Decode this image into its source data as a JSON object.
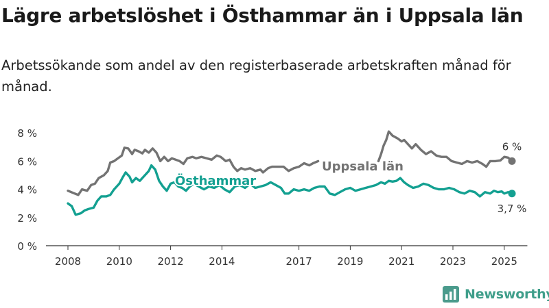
{
  "header": {
    "title": "Lägre arbetslöshet i Östhammar än i Uppsala län",
    "subtitle": "Arbetssökande som andel av den registerbaserade arbetskraften månad för månad."
  },
  "brand": {
    "name": "Newsworthy",
    "icon": "newsworthy-logo-icon"
  },
  "chart_data": {
    "type": "line",
    "title": "Lägre arbetslöshet i Östhammar än i Uppsala län",
    "subtitle": "Arbetssökande som andel av den registerbaserade arbetskraften månad för månad.",
    "xlabel": "",
    "ylabel": "",
    "xlim": [
      2007.5,
      2025.9
    ],
    "ylim": [
      0,
      8
    ],
    "x_ticks": [
      {
        "value": 2008,
        "label": "2008"
      },
      {
        "value": 2010,
        "label": "2010"
      },
      {
        "value": 2012,
        "label": "2012"
      },
      {
        "value": 2014,
        "label": "2014"
      },
      {
        "value": 2017,
        "label": "2017"
      },
      {
        "value": 2019,
        "label": "2019"
      },
      {
        "value": 2021,
        "label": "2021"
      },
      {
        "value": 2023,
        "label": "2023"
      },
      {
        "value": 2025,
        "label": "2025"
      }
    ],
    "y_ticks": [
      {
        "value": 0,
        "label": "0 %"
      },
      {
        "value": 2,
        "label": "2 %"
      },
      {
        "value": 4,
        "label": "4 %"
      },
      {
        "value": 6,
        "label": "6 %"
      },
      {
        "value": 8,
        "label": "8 %"
      }
    ],
    "grid": false,
    "legend": "inline labels",
    "series": [
      {
        "name": "Uppsala län",
        "color": "#737373",
        "end_label": "6 %",
        "segments": [
          [
            [
              2008.0,
              3.9
            ],
            [
              2008.2,
              3.75
            ],
            [
              2008.4,
              3.6
            ],
            [
              2008.55,
              4.0
            ],
            [
              2008.75,
              3.9
            ],
            [
              2008.9,
              4.3
            ],
            [
              2009.05,
              4.4
            ],
            [
              2009.2,
              4.8
            ],
            [
              2009.4,
              5.0
            ],
            [
              2009.55,
              5.3
            ],
            [
              2009.65,
              5.9
            ],
            [
              2009.8,
              6.0
            ],
            [
              2009.95,
              6.2
            ],
            [
              2010.1,
              6.4
            ],
            [
              2010.2,
              6.95
            ],
            [
              2010.35,
              6.9
            ],
            [
              2010.5,
              6.5
            ],
            [
              2010.6,
              6.8
            ],
            [
              2010.75,
              6.7
            ],
            [
              2010.9,
              6.55
            ],
            [
              2011.0,
              6.8
            ],
            [
              2011.15,
              6.6
            ],
            [
              2011.3,
              6.9
            ],
            [
              2011.45,
              6.6
            ],
            [
              2011.6,
              6.0
            ],
            [
              2011.75,
              6.3
            ],
            [
              2011.9,
              6.0
            ],
            [
              2012.05,
              6.2
            ],
            [
              2012.2,
              6.1
            ],
            [
              2012.35,
              6.0
            ],
            [
              2012.5,
              5.8
            ],
            [
              2012.65,
              6.2
            ],
            [
              2012.85,
              6.3
            ],
            [
              2013.0,
              6.2
            ],
            [
              2013.2,
              6.3
            ],
            [
              2013.4,
              6.2
            ],
            [
              2013.6,
              6.1
            ],
            [
              2013.8,
              6.4
            ],
            [
              2013.95,
              6.3
            ],
            [
              2014.15,
              6.0
            ],
            [
              2014.3,
              6.1
            ],
            [
              2014.45,
              5.6
            ],
            [
              2014.6,
              5.3
            ],
            [
              2014.75,
              5.5
            ],
            [
              2014.9,
              5.4
            ],
            [
              2015.1,
              5.5
            ],
            [
              2015.3,
              5.3
            ],
            [
              2015.5,
              5.4
            ],
            [
              2015.6,
              5.2
            ],
            [
              2015.8,
              5.5
            ],
            [
              2015.95,
              5.6
            ],
            [
              2016.2,
              5.6
            ],
            [
              2016.4,
              5.6
            ],
            [
              2016.6,
              5.3
            ],
            [
              2016.8,
              5.5
            ],
            [
              2017.0,
              5.6
            ],
            [
              2017.2,
              5.85
            ],
            [
              2017.4,
              5.7
            ],
            [
              2017.55,
              5.85
            ],
            [
              2017.75,
              6.0
            ]
          ],
          [
            [
              2020.1,
              6.0
            ],
            [
              2020.2,
              6.5
            ],
            [
              2020.3,
              7.1
            ],
            [
              2020.4,
              7.5
            ],
            [
              2020.5,
              8.1
            ],
            [
              2020.65,
              7.8
            ],
            [
              2020.85,
              7.6
            ],
            [
              2021.0,
              7.4
            ],
            [
              2021.1,
              7.5
            ],
            [
              2021.25,
              7.2
            ],
            [
              2021.4,
              6.9
            ],
            [
              2021.55,
              7.2
            ],
            [
              2021.75,
              6.8
            ],
            [
              2021.95,
              6.5
            ],
            [
              2022.15,
              6.7
            ],
            [
              2022.35,
              6.4
            ],
            [
              2022.55,
              6.3
            ],
            [
              2022.75,
              6.3
            ],
            [
              2022.95,
              6.0
            ],
            [
              2023.15,
              5.9
            ],
            [
              2023.35,
              5.8
            ],
            [
              2023.55,
              6.0
            ],
            [
              2023.75,
              5.9
            ],
            [
              2023.95,
              6.0
            ],
            [
              2024.15,
              5.8
            ],
            [
              2024.3,
              5.6
            ],
            [
              2024.45,
              6.0
            ],
            [
              2024.65,
              6.0
            ],
            [
              2024.85,
              6.05
            ],
            [
              2025.0,
              6.3
            ],
            [
              2025.15,
              6.25
            ],
            [
              2025.3,
              6.0
            ]
          ]
        ]
      },
      {
        "name": "Östhammar",
        "color": "#13a091",
        "end_label": "3,7 %",
        "segments": [
          [
            [
              2008.0,
              3.0
            ],
            [
              2008.15,
              2.8
            ],
            [
              2008.3,
              2.2
            ],
            [
              2008.5,
              2.3
            ],
            [
              2008.65,
              2.5
            ],
            [
              2008.8,
              2.6
            ],
            [
              2009.0,
              2.7
            ],
            [
              2009.15,
              3.2
            ],
            [
              2009.3,
              3.5
            ],
            [
              2009.5,
              3.5
            ],
            [
              2009.65,
              3.6
            ],
            [
              2009.8,
              4.0
            ],
            [
              2010.0,
              4.4
            ],
            [
              2010.15,
              4.9
            ],
            [
              2010.25,
              5.2
            ],
            [
              2010.4,
              4.9
            ],
            [
              2010.5,
              4.5
            ],
            [
              2010.65,
              4.8
            ],
            [
              2010.8,
              4.6
            ],
            [
              2011.0,
              5.0
            ],
            [
              2011.15,
              5.3
            ],
            [
              2011.25,
              5.7
            ],
            [
              2011.4,
              5.4
            ],
            [
              2011.55,
              4.6
            ],
            [
              2011.7,
              4.2
            ],
            [
              2011.85,
              3.9
            ],
            [
              2012.0,
              4.4
            ],
            [
              2012.15,
              4.5
            ],
            [
              2012.3,
              4.2
            ],
            [
              2012.45,
              4.1
            ],
            [
              2012.6,
              3.9
            ],
            [
              2012.75,
              4.2
            ],
            [
              2012.9,
              4.4
            ],
            [
              2013.1,
              4.2
            ],
            [
              2013.3,
              4.0
            ],
            [
              2013.5,
              4.2
            ],
            [
              2013.7,
              4.1
            ],
            [
              2013.9,
              4.3
            ],
            [
              2014.1,
              4.0
            ],
            [
              2014.3,
              3.8
            ],
            [
              2014.5,
              4.2
            ],
            [
              2014.7,
              4.3
            ],
            [
              2014.9,
              4.1
            ],
            [
              2015.1,
              4.4
            ],
            [
              2015.3,
              4.1
            ],
            [
              2015.5,
              4.2
            ],
            [
              2015.7,
              4.3
            ],
            [
              2015.9,
              4.5
            ],
            [
              2016.1,
              4.3
            ],
            [
              2016.3,
              4.1
            ],
            [
              2016.45,
              3.7
            ],
            [
              2016.6,
              3.7
            ],
            [
              2016.8,
              4.0
            ],
            [
              2017.0,
              3.9
            ],
            [
              2017.2,
              4.0
            ],
            [
              2017.4,
              3.9
            ],
            [
              2017.6,
              4.1
            ],
            [
              2017.8,
              4.2
            ],
            [
              2018.0,
              4.2
            ],
            [
              2018.2,
              3.7
            ],
            [
              2018.4,
              3.6
            ],
            [
              2018.6,
              3.8
            ],
            [
              2018.8,
              4.0
            ],
            [
              2019.0,
              4.1
            ],
            [
              2019.2,
              3.9
            ],
            [
              2019.4,
              4.0
            ],
            [
              2019.6,
              4.1
            ],
            [
              2019.8,
              4.2
            ],
            [
              2020.0,
              4.3
            ],
            [
              2020.2,
              4.5
            ],
            [
              2020.35,
              4.4
            ],
            [
              2020.5,
              4.6
            ],
            [
              2020.65,
              4.55
            ],
            [
              2020.8,
              4.6
            ],
            [
              2020.95,
              4.8
            ],
            [
              2021.1,
              4.5
            ],
            [
              2021.25,
              4.3
            ],
            [
              2021.45,
              4.1
            ],
            [
              2021.65,
              4.2
            ],
            [
              2021.85,
              4.4
            ],
            [
              2022.05,
              4.3
            ],
            [
              2022.25,
              4.1
            ],
            [
              2022.45,
              4.0
            ],
            [
              2022.65,
              4.0
            ],
            [
              2022.85,
              4.1
            ],
            [
              2023.05,
              4.0
            ],
            [
              2023.25,
              3.8
            ],
            [
              2023.45,
              3.7
            ],
            [
              2023.65,
              3.9
            ],
            [
              2023.85,
              3.8
            ],
            [
              2024.05,
              3.5
            ],
            [
              2024.25,
              3.8
            ],
            [
              2024.45,
              3.7
            ],
            [
              2024.6,
              3.9
            ],
            [
              2024.75,
              3.8
            ],
            [
              2024.9,
              3.85
            ],
            [
              2025.0,
              3.7
            ],
            [
              2025.15,
              3.8
            ],
            [
              2025.3,
              3.7
            ]
          ]
        ]
      }
    ]
  }
}
